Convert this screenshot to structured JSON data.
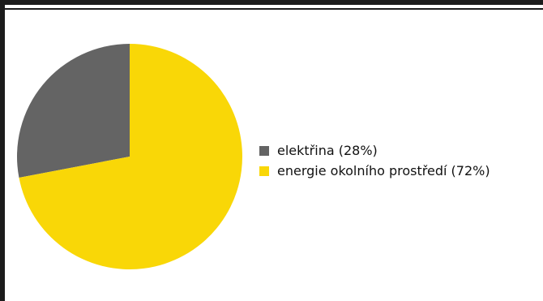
{
  "chart_data": {
    "type": "pie",
    "title": "",
    "slices": [
      {
        "label": "elektřina (28%)",
        "value": 28,
        "color": "#646464"
      },
      {
        "label": "energie okolního prostředí (72%)",
        "value": 72,
        "color": "#f9d707"
      }
    ],
    "start_angle_deg": 0,
    "direction": "counterclockwise",
    "legend_position": "right"
  }
}
